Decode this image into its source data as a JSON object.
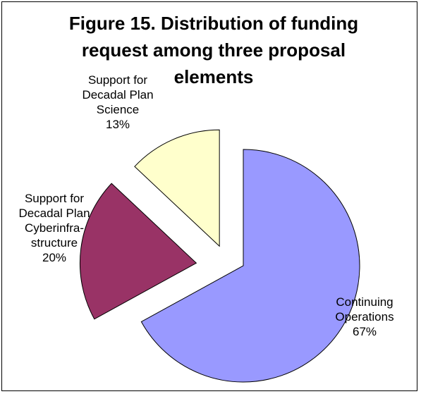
{
  "chart_data": {
    "type": "pie",
    "title": "Figure 15.  Distribution of funding request among three proposal elements",
    "slices": [
      {
        "label_lines": [
          "Continuing",
          "Operations"
        ],
        "value": 67,
        "percent_label": "67%",
        "color": "#9999FF",
        "exploded": false
      },
      {
        "label_lines": [
          "Support for",
          "Decadal Plan",
          "Cyberinfra-",
          "structure"
        ],
        "value": 20,
        "percent_label": "20%",
        "color": "#993366",
        "exploded": true
      },
      {
        "label_lines": [
          "Support for",
          "Decadal Plan",
          "Science"
        ],
        "value": 13,
        "percent_label": "13%",
        "color": "#FFFFCC",
        "exploded": true
      }
    ],
    "start_angle": "12 o'clock",
    "direction": "clockwise",
    "legend": "none",
    "outline_color": "#000000"
  }
}
